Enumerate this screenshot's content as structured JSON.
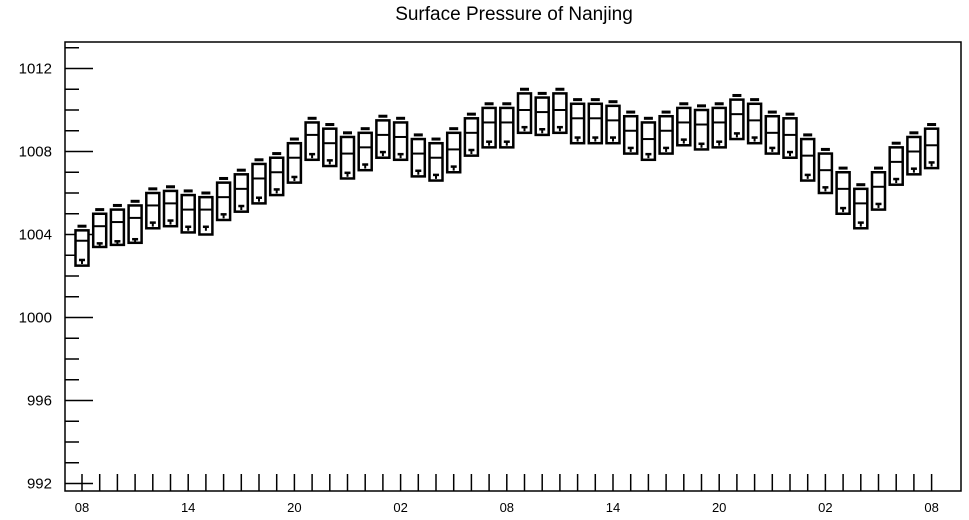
{
  "chart_data": {
    "type": "boxplot",
    "title": "Surface Pressure of Nanjing",
    "xlabel": "",
    "ylabel": "",
    "ylim": [
      992,
      1013.2
    ],
    "yticks": [
      992,
      996,
      1000,
      1004,
      1008,
      1012
    ],
    "ytick_labels": [
      "992",
      "996",
      "1000",
      "1004",
      "1008",
      "1012"
    ],
    "x_tick_labels": [
      "08",
      "14",
      "20",
      "02",
      "08",
      "14",
      "20",
      "02",
      "08"
    ],
    "x_tick_label_steps": [
      0,
      6,
      12,
      18,
      24,
      30,
      36,
      42,
      48
    ],
    "grid": false,
    "legend": "none",
    "color": "#000000",
    "boxes": [
      {
        "x": 0,
        "whisker_high": 1004.4,
        "q3": 1004.2,
        "median": 1003.7,
        "q1": 1002.5,
        "marker": 1002.7
      },
      {
        "x": 1,
        "whisker_high": 1005.2,
        "q3": 1005.0,
        "median": 1004.4,
        "q1": 1003.4,
        "marker": 1003.5
      },
      {
        "x": 2,
        "whisker_high": 1005.4,
        "q3": 1005.2,
        "median": 1004.6,
        "q1": 1003.5,
        "marker": 1003.6
      },
      {
        "x": 3,
        "whisker_high": 1005.6,
        "q3": 1005.4,
        "median": 1004.8,
        "q1": 1003.6,
        "marker": 1003.7
      },
      {
        "x": 4,
        "whisker_high": 1006.2,
        "q3": 1006.0,
        "median": 1005.4,
        "q1": 1004.3,
        "marker": 1004.5
      },
      {
        "x": 5,
        "whisker_high": 1006.3,
        "q3": 1006.1,
        "median": 1005.5,
        "q1": 1004.4,
        "marker": 1004.6
      },
      {
        "x": 6,
        "whisker_high": 1006.1,
        "q3": 1005.9,
        "median": 1005.2,
        "q1": 1004.1,
        "marker": 1004.3
      },
      {
        "x": 7,
        "whisker_high": 1006.0,
        "q3": 1005.8,
        "median": 1005.2,
        "q1": 1004.0,
        "marker": 1004.3
      },
      {
        "x": 8,
        "whisker_high": 1006.7,
        "q3": 1006.5,
        "median": 1005.8,
        "q1": 1004.7,
        "marker": 1004.9
      },
      {
        "x": 9,
        "whisker_high": 1007.1,
        "q3": 1006.9,
        "median": 1006.2,
        "q1": 1005.1,
        "marker": 1005.3
      },
      {
        "x": 10,
        "whisker_high": 1007.6,
        "q3": 1007.4,
        "median": 1006.7,
        "q1": 1005.5,
        "marker": 1005.7
      },
      {
        "x": 11,
        "whisker_high": 1007.9,
        "q3": 1007.7,
        "median": 1007.0,
        "q1": 1005.9,
        "marker": 1006.1
      },
      {
        "x": 12,
        "whisker_high": 1008.6,
        "q3": 1008.4,
        "median": 1007.7,
        "q1": 1006.5,
        "marker": 1006.7
      },
      {
        "x": 13,
        "whisker_high": 1009.6,
        "q3": 1009.4,
        "median": 1008.8,
        "q1": 1007.6,
        "marker": 1007.8
      },
      {
        "x": 14,
        "whisker_high": 1009.3,
        "q3": 1009.1,
        "median": 1008.4,
        "q1": 1007.3,
        "marker": 1007.5
      },
      {
        "x": 15,
        "whisker_high": 1008.9,
        "q3": 1008.7,
        "median": 1007.9,
        "q1": 1006.7,
        "marker": 1006.9
      },
      {
        "x": 16,
        "whisker_high": 1009.1,
        "q3": 1008.9,
        "median": 1008.2,
        "q1": 1007.1,
        "marker": 1007.3
      },
      {
        "x": 17,
        "whisker_high": 1009.7,
        "q3": 1009.5,
        "median": 1008.8,
        "q1": 1007.7,
        "marker": 1007.9
      },
      {
        "x": 18,
        "whisker_high": 1009.6,
        "q3": 1009.4,
        "median": 1008.7,
        "q1": 1007.6,
        "marker": 1007.8
      },
      {
        "x": 19,
        "whisker_high": 1008.8,
        "q3": 1008.6,
        "median": 1007.9,
        "q1": 1006.8,
        "marker": 1007.0
      },
      {
        "x": 20,
        "whisker_high": 1008.6,
        "q3": 1008.4,
        "median": 1007.7,
        "q1": 1006.6,
        "marker": 1006.8
      },
      {
        "x": 21,
        "whisker_high": 1009.1,
        "q3": 1008.9,
        "median": 1008.1,
        "q1": 1007.0,
        "marker": 1007.2
      },
      {
        "x": 22,
        "whisker_high": 1009.8,
        "q3": 1009.6,
        "median": 1008.9,
        "q1": 1007.8,
        "marker": 1008.0
      },
      {
        "x": 23,
        "whisker_high": 1010.3,
        "q3": 1010.1,
        "median": 1009.4,
        "q1": 1008.2,
        "marker": 1008.4
      },
      {
        "x": 24,
        "whisker_high": 1010.3,
        "q3": 1010.1,
        "median": 1009.4,
        "q1": 1008.2,
        "marker": 1008.4
      },
      {
        "x": 25,
        "whisker_high": 1011.0,
        "q3": 1010.8,
        "median": 1010.0,
        "q1": 1008.9,
        "marker": 1009.1
      },
      {
        "x": 26,
        "whisker_high": 1010.8,
        "q3": 1010.6,
        "median": 1009.9,
        "q1": 1008.8,
        "marker": 1009.0
      },
      {
        "x": 27,
        "whisker_high": 1011.0,
        "q3": 1010.8,
        "median": 1010.0,
        "q1": 1008.9,
        "marker": 1009.1
      },
      {
        "x": 28,
        "whisker_high": 1010.5,
        "q3": 1010.3,
        "median": 1009.6,
        "q1": 1008.4,
        "marker": 1008.6
      },
      {
        "x": 29,
        "whisker_high": 1010.5,
        "q3": 1010.3,
        "median": 1009.6,
        "q1": 1008.4,
        "marker": 1008.6
      },
      {
        "x": 30,
        "whisker_high": 1010.4,
        "q3": 1010.2,
        "median": 1009.5,
        "q1": 1008.4,
        "marker": 1008.6
      },
      {
        "x": 31,
        "whisker_high": 1009.9,
        "q3": 1009.7,
        "median": 1009.0,
        "q1": 1007.9,
        "marker": 1008.1
      },
      {
        "x": 32,
        "whisker_high": 1009.6,
        "q3": 1009.4,
        "median": 1008.6,
        "q1": 1007.6,
        "marker": 1007.8
      },
      {
        "x": 33,
        "whisker_high": 1009.9,
        "q3": 1009.7,
        "median": 1009.0,
        "q1": 1007.9,
        "marker": 1008.1
      },
      {
        "x": 34,
        "whisker_high": 1010.3,
        "q3": 1010.1,
        "median": 1009.4,
        "q1": 1008.3,
        "marker": 1008.5
      },
      {
        "x": 35,
        "whisker_high": 1010.2,
        "q3": 1010.0,
        "median": 1009.3,
        "q1": 1008.1,
        "marker": 1008.3
      },
      {
        "x": 36,
        "whisker_high": 1010.3,
        "q3": 1010.1,
        "median": 1009.4,
        "q1": 1008.2,
        "marker": 1008.4
      },
      {
        "x": 37,
        "whisker_high": 1010.7,
        "q3": 1010.5,
        "median": 1009.8,
        "q1": 1008.6,
        "marker": 1008.8
      },
      {
        "x": 38,
        "whisker_high": 1010.5,
        "q3": 1010.3,
        "median": 1009.5,
        "q1": 1008.4,
        "marker": 1008.6
      },
      {
        "x": 39,
        "whisker_high": 1009.9,
        "q3": 1009.7,
        "median": 1008.9,
        "q1": 1007.9,
        "marker": 1008.1
      },
      {
        "x": 40,
        "whisker_high": 1009.8,
        "q3": 1009.6,
        "median": 1008.8,
        "q1": 1007.7,
        "marker": 1007.9
      },
      {
        "x": 41,
        "whisker_high": 1008.8,
        "q3": 1008.6,
        "median": 1007.8,
        "q1": 1006.6,
        "marker": 1006.8
      },
      {
        "x": 42,
        "whisker_high": 1008.1,
        "q3": 1007.9,
        "median": 1007.1,
        "q1": 1006.0,
        "marker": 1006.2
      },
      {
        "x": 43,
        "whisker_high": 1007.2,
        "q3": 1007.0,
        "median": 1006.2,
        "q1": 1005.0,
        "marker": 1005.2
      },
      {
        "x": 44,
        "whisker_high": 1006.4,
        "q3": 1006.2,
        "median": 1005.5,
        "q1": 1004.3,
        "marker": 1004.5
      },
      {
        "x": 45,
        "whisker_high": 1007.2,
        "q3": 1007.0,
        "median": 1006.3,
        "q1": 1005.2,
        "marker": 1005.4
      },
      {
        "x": 46,
        "whisker_high": 1008.4,
        "q3": 1008.2,
        "median": 1007.5,
        "q1": 1006.4,
        "marker": 1006.6
      },
      {
        "x": 47,
        "whisker_high": 1008.9,
        "q3": 1008.7,
        "median": 1008.0,
        "q1": 1006.9,
        "marker": 1007.1
      },
      {
        "x": 48,
        "whisker_high": 1009.3,
        "q3": 1009.1,
        "median": 1008.3,
        "q1": 1007.2,
        "marker": 1007.4
      }
    ]
  }
}
